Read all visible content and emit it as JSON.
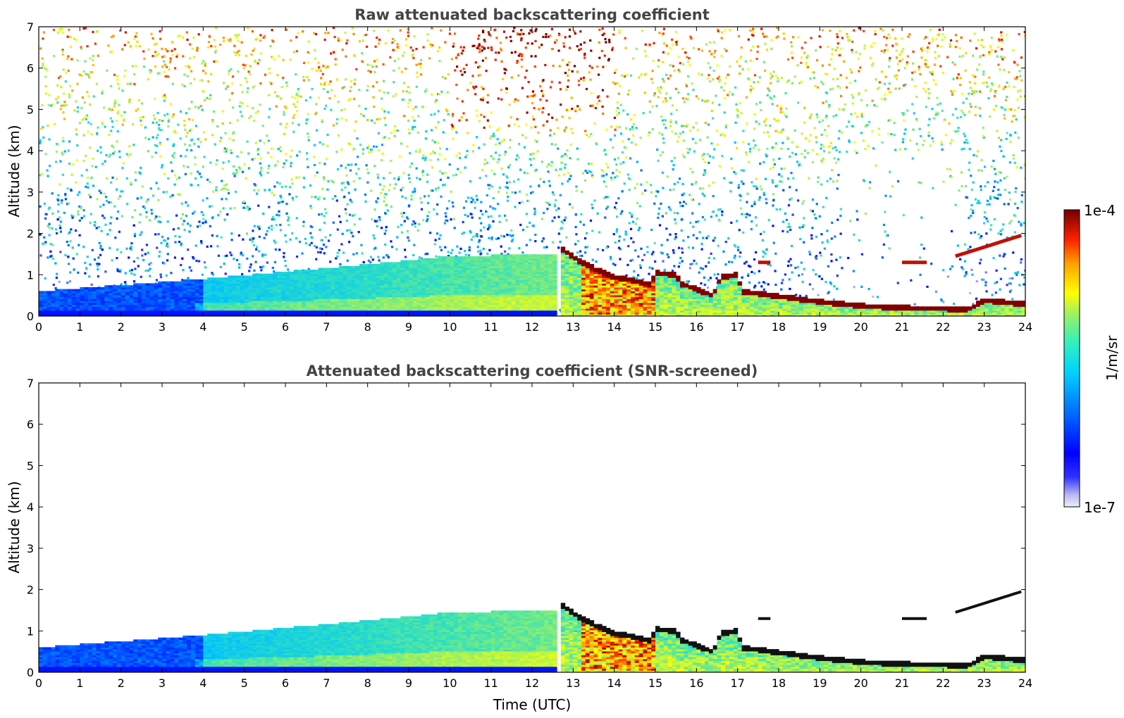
{
  "chart_data": [
    {
      "type": "heatmap",
      "id": "raw",
      "title": "Raw attenuated backscattering coefficient",
      "xlabel": "",
      "ylabel": "Altitude (km)",
      "xlim": [
        0,
        24
      ],
      "ylim": [
        0,
        7
      ],
      "xticks": [
        0,
        1,
        2,
        3,
        4,
        5,
        6,
        7,
        8,
        9,
        10,
        11,
        12,
        13,
        14,
        15,
        16,
        17,
        18,
        19,
        20,
        21,
        22,
        23,
        24
      ],
      "yticks": [
        0,
        1,
        2,
        3,
        4,
        5,
        6,
        7
      ],
      "screened": false,
      "cloud_base_km": [
        {
          "t": 12.7,
          "z": 1.65
        },
        {
          "t": 13.0,
          "z": 1.42
        },
        {
          "t": 13.5,
          "z": 1.15
        },
        {
          "t": 14.0,
          "z": 0.95
        },
        {
          "t": 14.5,
          "z": 0.85
        },
        {
          "t": 14.9,
          "z": 0.75
        },
        {
          "t": 15.0,
          "z": 1.05
        },
        {
          "t": 15.5,
          "z": 1.0
        },
        {
          "t": 15.6,
          "z": 0.8
        },
        {
          "t": 16.0,
          "z": 0.65
        },
        {
          "t": 16.4,
          "z": 0.5
        },
        {
          "t": 16.6,
          "z": 0.95
        },
        {
          "t": 17.0,
          "z": 1.0
        },
        {
          "t": 17.1,
          "z": 0.6
        },
        {
          "t": 18.0,
          "z": 0.48
        },
        {
          "t": 19.0,
          "z": 0.35
        },
        {
          "t": 20.0,
          "z": 0.25
        },
        {
          "t": 21.0,
          "z": 0.2
        },
        {
          "t": 22.0,
          "z": 0.18
        },
        {
          "t": 22.6,
          "z": 0.15
        },
        {
          "t": 23.0,
          "z": 0.38
        },
        {
          "t": 23.9,
          "z": 0.3
        }
      ],
      "elevated_layers": [
        {
          "t0": 22.3,
          "t1": 23.9,
          "z0": 1.45,
          "z1": 1.95
        },
        {
          "t0": 17.5,
          "t1": 17.8,
          "z0": 1.3,
          "z1": 1.3
        },
        {
          "t0": 21.0,
          "t1": 21.6,
          "z0": 1.3,
          "z1": 1.3
        }
      ],
      "boundary_layer_top_km": [
        {
          "t": 0,
          "z": 0.6
        },
        {
          "t": 4,
          "z": 0.9
        },
        {
          "t": 8,
          "z": 1.25
        },
        {
          "t": 10,
          "z": 1.45
        },
        {
          "t": 12.5,
          "z": 1.5
        }
      ]
    },
    {
      "type": "heatmap",
      "id": "screened",
      "title": "Attenuated backscattering coefficient (SNR-screened)",
      "xlabel": "Time (UTC)",
      "ylabel": "Altitude (km)",
      "xlim": [
        0,
        24
      ],
      "ylim": [
        0,
        7
      ],
      "xticks": [
        0,
        1,
        2,
        3,
        4,
        5,
        6,
        7,
        8,
        9,
        10,
        11,
        12,
        13,
        14,
        15,
        16,
        17,
        18,
        19,
        20,
        21,
        22,
        23,
        24
      ],
      "yticks": [
        0,
        1,
        2,
        3,
        4,
        5,
        6,
        7
      ],
      "screened": true
    }
  ],
  "colorbar": {
    "label": "1/m/sr",
    "max_label": "1e-4",
    "min_label": "1e-7",
    "scale": "log",
    "range": [
      1e-07,
      0.0001
    ],
    "colormap": [
      "#e8e8f8",
      "#9a9af0",
      "#0000ff",
      "#0060ff",
      "#00c0ff",
      "#30e0c0",
      "#a0f060",
      "#ffff00",
      "#ffa000",
      "#ff3000",
      "#a00000",
      "#700000"
    ]
  }
}
